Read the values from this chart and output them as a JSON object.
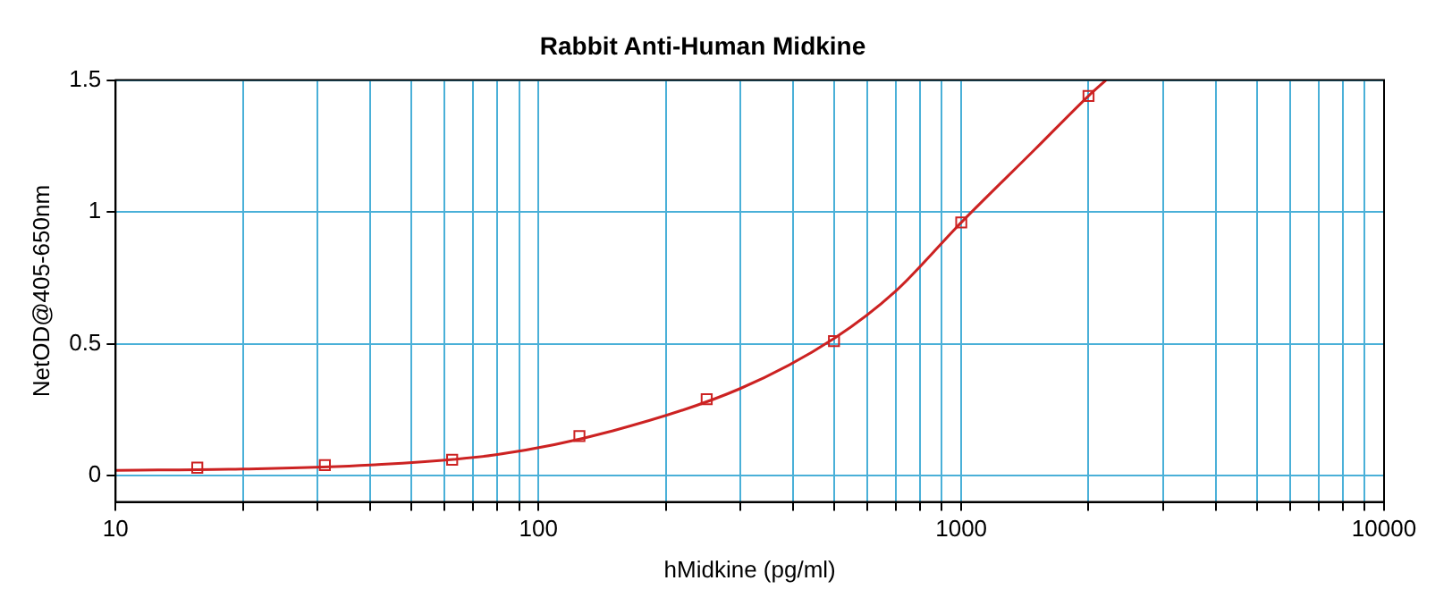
{
  "chart_data": {
    "type": "scatter",
    "title": "Rabbit Anti-Human Midkine",
    "xlabel": "hMidkine (pg/ml)",
    "ylabel": "NetOD@405-650nm",
    "log": "x",
    "grid": true,
    "legend": false,
    "xlim": [
      10,
      10000
    ],
    "ylim": [
      -0.1,
      1.5
    ],
    "xticks": [
      10,
      {
        "value": 20,
        "label": null
      },
      {
        "value": 30,
        "label": null
      },
      {
        "value": 40,
        "label": null
      },
      {
        "value": 50,
        "label": null
      },
      {
        "value": 60,
        "label": null
      },
      {
        "value": 70,
        "label": null
      },
      {
        "value": 80,
        "label": null
      },
      {
        "value": 90,
        "label": null
      },
      100,
      {
        "value": 200,
        "label": null
      },
      {
        "value": 300,
        "label": null
      },
      {
        "value": 400,
        "label": null
      },
      {
        "value": 500,
        "label": null
      },
      {
        "value": 600,
        "label": null
      },
      {
        "value": 700,
        "label": null
      },
      {
        "value": 800,
        "label": null
      },
      {
        "value": 900,
        "label": null
      },
      1000,
      {
        "value": 2000,
        "label": null
      },
      {
        "value": 3000,
        "label": null
      },
      {
        "value": 4000,
        "label": null
      },
      {
        "value": 5000,
        "label": null
      },
      {
        "value": 6000,
        "label": null
      },
      {
        "value": 7000,
        "label": null
      },
      {
        "value": 8000,
        "label": null
      },
      {
        "value": 9000,
        "label": null
      },
      10000
    ],
    "yticks": [
      0,
      0.5,
      1,
      1.5
    ],
    "series": [
      {
        "type": "scatter",
        "marker": "square",
        "color": "#cc2222",
        "x": [
          15.6,
          31.25,
          62.5,
          125,
          250,
          500,
          1000,
          2000
        ],
        "values": [
          0.03,
          0.04,
          0.06,
          0.15,
          0.29,
          0.51,
          0.96,
          1.44
        ]
      },
      {
        "type": "line",
        "marker": "none",
        "color": "#cc2222",
        "x": [
          10,
          20,
          40,
          80,
          150,
          300,
          500,
          700,
          1000,
          1500,
          2000,
          2200
        ],
        "values": [
          0.02,
          0.025,
          0.04,
          0.08,
          0.17,
          0.33,
          0.52,
          0.7,
          0.96,
          1.24,
          1.44,
          1.5
        ]
      }
    ]
  }
}
